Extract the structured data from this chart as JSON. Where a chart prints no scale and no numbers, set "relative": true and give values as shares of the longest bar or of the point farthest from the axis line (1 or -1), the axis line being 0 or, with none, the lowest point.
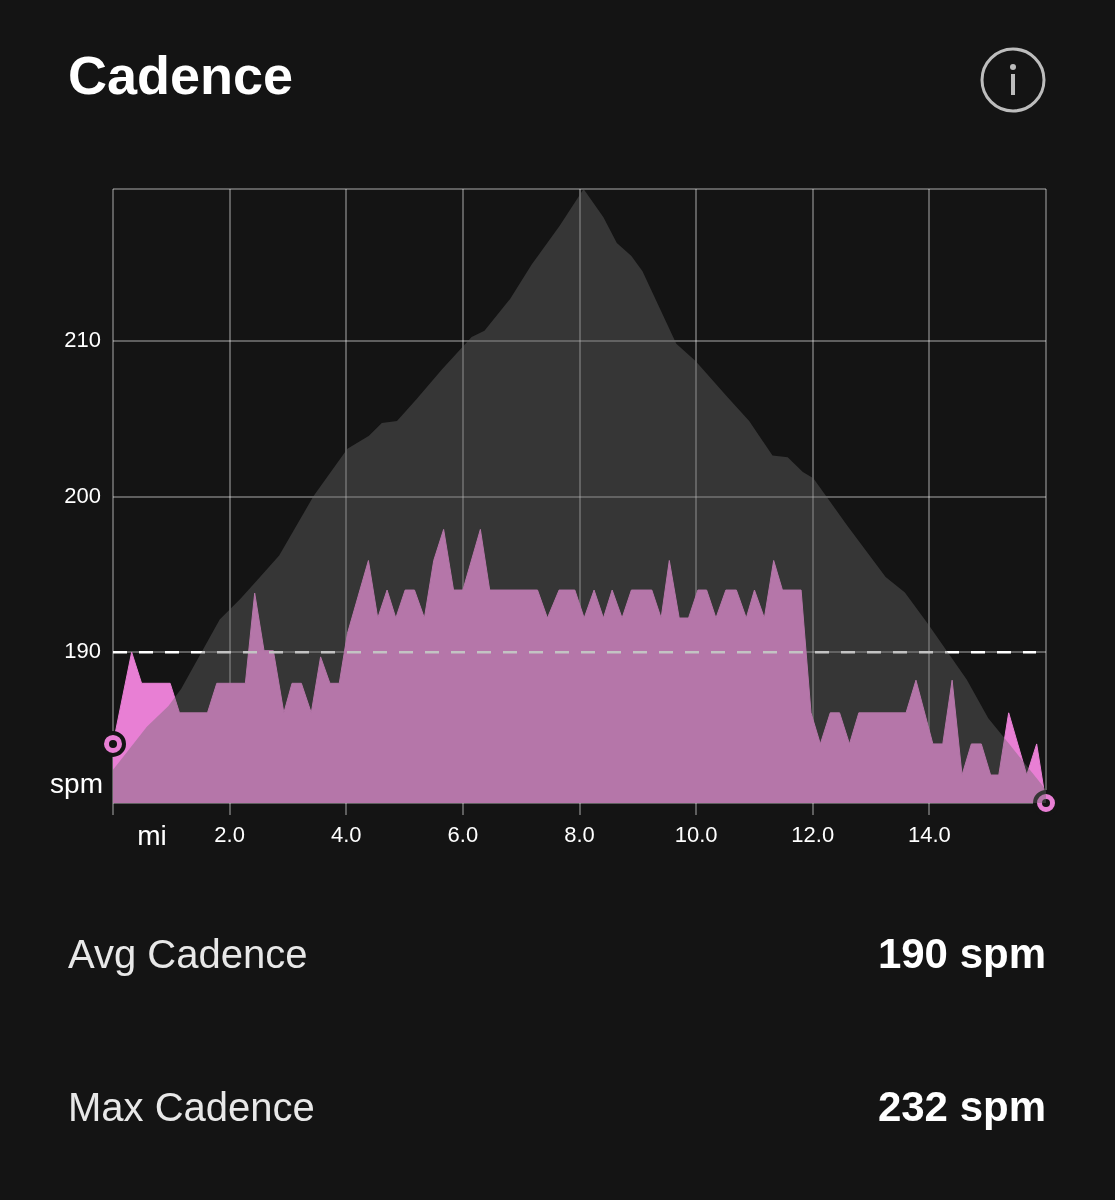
{
  "chart_data": [
    {
      "type": "area",
      "title": "Cadence",
      "xlabel": "mi",
      "ylabel": "spm",
      "xlim": [
        0,
        16
      ],
      "xticks": [
        {
          "value": 0,
          "label": null
        },
        {
          "value": 2,
          "label": "2.0"
        },
        {
          "value": 4,
          "label": "4.0"
        },
        {
          "value": 6,
          "label": "6.0"
        },
        {
          "value": 8,
          "label": "8.0"
        },
        {
          "value": 10,
          "label": "10.0"
        },
        {
          "value": 12,
          "label": "12.0"
        },
        {
          "value": 14,
          "label": "14.0"
        },
        {
          "value": 16,
          "label": null
        }
      ],
      "ylim": [
        180.3,
        219.8
      ],
      "yticks": [
        {
          "value": 180.3,
          "label": null
        },
        190,
        200,
        210,
        {
          "value": 219.8,
          "label": null
        }
      ],
      "grid": true,
      "legend": false,
      "ref_lines": [
        {
          "axis": "y",
          "value": 190,
          "color": "#ffffff",
          "line_style": "dashed"
        }
      ],
      "annotations": [
        "Avg Cadence",
        "190 spm",
        "Max Cadence",
        "232 spm"
      ],
      "series": [
        {
          "color": "#e87fd4",
          "x": [
            0,
            0.32,
            0.49,
            0.98,
            1.14,
            1.62,
            1.78,
            2.27,
            2.43,
            2.59,
            2.75,
            2.93,
            3.07,
            3.23,
            3.4,
            3.56,
            3.72,
            3.88,
            4.02,
            4.38,
            4.54,
            4.7,
            4.85,
            5.01,
            5.17,
            5.34,
            5.5,
            5.67,
            5.84,
            6,
            6.3,
            6.46,
            7.28,
            7.45,
            7.65,
            7.92,
            8.08,
            8.25,
            8.41,
            8.56,
            8.73,
            8.89,
            9.24,
            9.4,
            9.54,
            9.71,
            9.87,
            10.03,
            10.18,
            10.34,
            10.51,
            10.69,
            10.86,
            11,
            11.17,
            11.33,
            11.48,
            11.8,
            11.97,
            12.13,
            12.3,
            12.46,
            12.63,
            12.79,
            13.6,
            13.77,
            14.06,
            14.23,
            14.39,
            14.56,
            14.72,
            14.89,
            15.05,
            15.19,
            15.36,
            15.67,
            15.84,
            16
          ],
          "values": [
            184.1,
            190,
            188,
            188,
            186.1,
            186.1,
            188,
            188,
            193.8,
            190.1,
            190.1,
            186.1,
            188,
            188,
            186.1,
            189.7,
            188,
            188,
            191.2,
            195.9,
            192.2,
            194,
            192.2,
            194,
            194,
            192.2,
            195.9,
            197.9,
            194,
            194,
            197.9,
            194,
            194,
            192.2,
            194,
            194,
            192.2,
            194,
            192.2,
            194,
            192.2,
            194,
            194,
            192.2,
            195.9,
            192.2,
            192.2,
            194,
            194,
            192.2,
            194,
            194,
            192.2,
            194,
            192.2,
            195.9,
            194,
            194,
            186.1,
            184.1,
            186.1,
            186.1,
            184.1,
            186.1,
            186.1,
            188.2,
            184.1,
            184.1,
            188.2,
            182.1,
            184.1,
            184.1,
            182.1,
            182.1,
            186.1,
            182.1,
            184.1,
            180.3
          ]
        }
      ]
    },
    {
      "type": "area",
      "relative": true,
      "xlim": [
        0,
        16
      ],
      "series": [
        {
          "color": "#696969",
          "x": [
            0,
            0.58,
            0.95,
            1.17,
            1.83,
            2.19,
            2.85,
            3.44,
            4.02,
            4.39,
            4.61,
            4.87,
            5.2,
            5.64,
            6.15,
            6.37,
            6.81,
            7.18,
            7.66,
            8.07,
            8.41,
            8.64,
            8.89,
            9.08,
            9.66,
            9.99,
            10.54,
            10.91,
            11.31,
            11.57,
            11.83,
            12.01,
            12.59,
            13.25,
            13.58,
            13.98,
            14.64,
            15.01,
            15.37,
            15.96,
            16
          ],
          "values": [
            0.054,
            0.124,
            0.158,
            0.186,
            0.299,
            0.333,
            0.403,
            0.5,
            0.577,
            0.598,
            0.619,
            0.622,
            0.657,
            0.706,
            0.759,
            0.769,
            0.821,
            0.877,
            0.94,
            1,
            0.954,
            0.912,
            0.891,
            0.866,
            0.748,
            0.72,
            0.661,
            0.622,
            0.566,
            0.563,
            0.539,
            0.529,
            0.452,
            0.368,
            0.343,
            0.291,
            0.201,
            0.138,
            0.096,
            0.026,
            0.02
          ]
        }
      ]
    }
  ]
}
